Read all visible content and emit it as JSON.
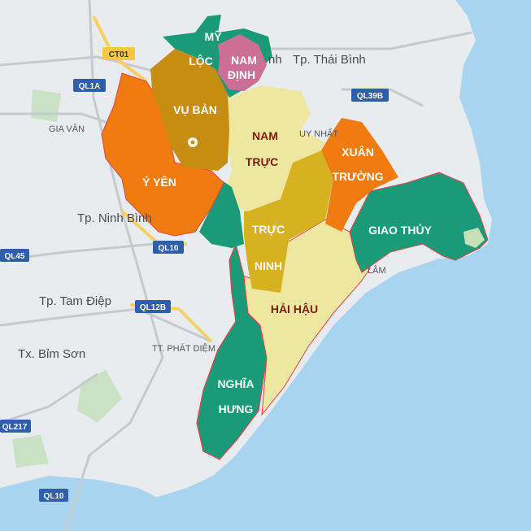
{
  "colors": {
    "sea": "#a8d4f0",
    "land": "#e9ecee",
    "green": "#1a9b78",
    "orange": "#f07c10",
    "gold": "#c68d12",
    "khaki": "#d6b220",
    "pale": "#ede7a2",
    "pink": "#cc6f95",
    "border": "#e0434a"
  },
  "districts": [
    {
      "id": "my-loc",
      "lines": [
        "MỸ",
        "LỘC"
      ]
    },
    {
      "id": "nam-dinh",
      "lines": [
        "NAM",
        "ĐỊNH"
      ]
    },
    {
      "id": "vu-ban",
      "lines": [
        "VỤ BẢN"
      ]
    },
    {
      "id": "nam-truc",
      "lines": [
        "NAM",
        "TRỰC"
      ]
    },
    {
      "id": "xuan-truong",
      "lines": [
        "XUÂN",
        "TRƯỜNG"
      ]
    },
    {
      "id": "y-yen",
      "lines": [
        "Ý YÊN"
      ]
    },
    {
      "id": "truc-ninh",
      "lines": [
        "TRỰC",
        "NINH"
      ]
    },
    {
      "id": "giao-thuy",
      "lines": [
        "GIAO THỦY"
      ]
    },
    {
      "id": "hai-hau",
      "lines": [
        "HẢI HẬU"
      ]
    },
    {
      "id": "nghia-hung",
      "lines": [
        "NGHĨA",
        "HƯNG"
      ]
    }
  ],
  "places": {
    "thai_binh": "Tp. Thái Bình",
    "ninh_binh": "Tp. Ninh Bình",
    "tam_diep": "Tp. Tam Điệp",
    "bim_son": "Tx. Bỉm Sơn",
    "gia_van": "GIA VÂN",
    "phat_diem": "TT. PHÁT DIỆM",
    "lam": "LÂM",
    "uy_nhat": "UY NHẤT",
    "nh": "nh"
  },
  "roads": {
    "ct01": "CT01",
    "ql1a": "QL1A",
    "ql39b": "QL39B",
    "ql10_a": "QL10",
    "ql45": "QL45",
    "ql12b": "QL12B",
    "ql217": "QL217",
    "ql10_b": "QL10"
  }
}
